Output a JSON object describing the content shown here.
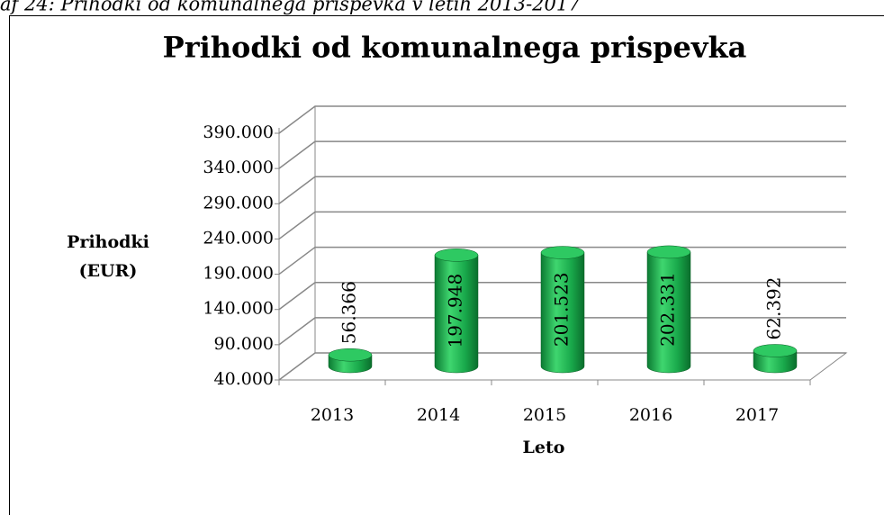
{
  "caption": "af 24: Prihodki od komunalnega prispevka v letih 2013-2017",
  "chart_data": {
    "type": "bar3d",
    "title": "Prihodki od komunalnega prispevka",
    "xlabel": "Leto",
    "ylabel": [
      "Prihodki",
      "(EUR)"
    ],
    "categories": [
      "2013",
      "2014",
      "2015",
      "2016",
      "2017"
    ],
    "values": [
      56366,
      197948,
      201523,
      202331,
      62392
    ],
    "value_labels": [
      "56.366",
      "197.948",
      "201.523",
      "202.331",
      "62.392"
    ],
    "color": "#19a94b",
    "ylim": [
      40000,
      390000
    ],
    "yticks": [
      {
        "value": 40000,
        "label": "40.000"
      },
      {
        "value": 90000,
        "label": "90.000"
      },
      {
        "value": 140000,
        "label": "140.000"
      },
      {
        "value": 190000,
        "label": "190.000"
      },
      {
        "value": 240000,
        "label": "240.000"
      },
      {
        "value": 290000,
        "label": "290.000"
      },
      {
        "value": 340000,
        "label": "340.000"
      },
      {
        "value": 390000,
        "label": "390.000"
      }
    ],
    "grid": true
  }
}
